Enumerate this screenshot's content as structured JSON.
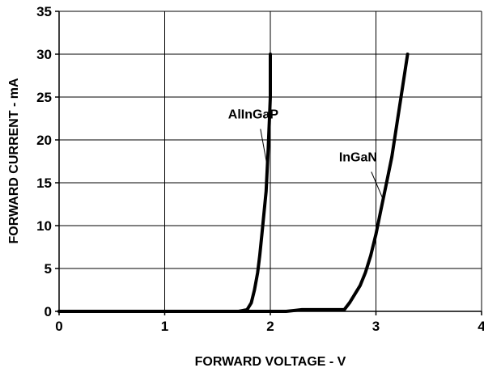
{
  "chart_data": {
    "type": "line",
    "title": "",
    "xlabel": "FORWARD VOLTAGE - V",
    "ylabel": "FORWARD CURRENT - mA",
    "xlim": [
      0,
      4
    ],
    "ylim": [
      0,
      35
    ],
    "x_ticks": [
      0,
      1,
      2,
      3,
      4
    ],
    "y_ticks": [
      0,
      5,
      10,
      15,
      20,
      25,
      30,
      35
    ],
    "x_tick_labels": [
      "0",
      "1",
      "2",
      "3",
      "4"
    ],
    "y_tick_labels": [
      "0",
      "5",
      "10",
      "15",
      "20",
      "25",
      "30",
      "35"
    ],
    "grid": true,
    "legend": "none",
    "series": [
      {
        "name": "AlInGaP",
        "color": "#000000",
        "points": [
          [
            0,
            0
          ],
          [
            1.7,
            0
          ],
          [
            1.78,
            0.2
          ],
          [
            1.82,
            1
          ],
          [
            1.85,
            2.5
          ],
          [
            1.88,
            4.5
          ],
          [
            1.9,
            6.5
          ],
          [
            1.92,
            9
          ],
          [
            1.94,
            11.5
          ],
          [
            1.96,
            14
          ],
          [
            1.97,
            16.5
          ],
          [
            1.98,
            19
          ],
          [
            1.99,
            22
          ],
          [
            2.0,
            25
          ],
          [
            2.0,
            30
          ]
        ]
      },
      {
        "name": "InGaN",
        "color": "#000000",
        "points": [
          [
            0,
            0
          ],
          [
            2.15,
            0
          ],
          [
            2.3,
            0.2
          ],
          [
            2.7,
            0.2
          ],
          [
            2.75,
            1
          ],
          [
            2.8,
            2
          ],
          [
            2.85,
            3
          ],
          [
            2.9,
            4.5
          ],
          [
            2.95,
            6.5
          ],
          [
            3.0,
            9
          ],
          [
            3.05,
            12
          ],
          [
            3.1,
            15
          ],
          [
            3.15,
            18
          ],
          [
            3.2,
            22
          ],
          [
            3.25,
            26
          ],
          [
            3.3,
            30
          ]
        ]
      }
    ],
    "annotations": [
      {
        "text": "AlInGaP",
        "series": "AlInGaP",
        "x": 1.6,
        "y": 22.5,
        "point_x": 1.97,
        "point_y": 17
      },
      {
        "text": "InGaN",
        "series": "InGaN",
        "x": 2.65,
        "y": 17.5,
        "point_x": 3.07,
        "point_y": 13
      }
    ]
  }
}
